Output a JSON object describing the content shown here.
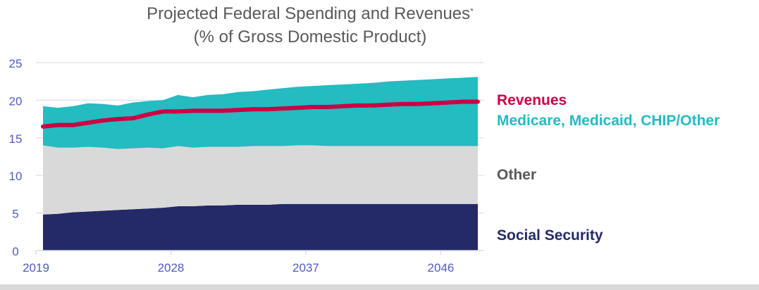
{
  "chart_data": {
    "type": "area",
    "title": "Projected Federal Spending and Revenues",
    "title_marker": "*",
    "subtitle": "(% of Gross Domestic Product)",
    "xlabel": "",
    "ylabel": "",
    "ylim": [
      0,
      25
    ],
    "yticks": [
      0,
      5,
      10,
      15,
      20,
      25
    ],
    "xticks": [
      "2019",
      "2028",
      "2037",
      "2046"
    ],
    "grid": true,
    "x": [
      2019,
      2020,
      2021,
      2022,
      2023,
      2024,
      2025,
      2026,
      2027,
      2028,
      2029,
      2030,
      2031,
      2032,
      2033,
      2034,
      2035,
      2036,
      2037,
      2038,
      2039,
      2040,
      2041,
      2042,
      2043,
      2044,
      2045,
      2046,
      2047,
      2048
    ],
    "stacked_series": [
      {
        "name": "Social Security",
        "color": "#242a66",
        "values": [
          4.8,
          4.9,
          5.1,
          5.2,
          5.3,
          5.4,
          5.5,
          5.6,
          5.7,
          5.9,
          5.9,
          6.0,
          6.0,
          6.1,
          6.1,
          6.1,
          6.2,
          6.2,
          6.2,
          6.2,
          6.2,
          6.2,
          6.2,
          6.2,
          6.2,
          6.2,
          6.2,
          6.2,
          6.2,
          6.2
        ]
      },
      {
        "name": "Other",
        "color": "#d9d9d9",
        "values": [
          9.2,
          8.8,
          8.6,
          8.6,
          8.4,
          8.1,
          8.1,
          8.1,
          7.9,
          8.0,
          7.8,
          7.8,
          7.8,
          7.7,
          7.8,
          7.8,
          7.7,
          7.8,
          7.8,
          7.7,
          7.7,
          7.7,
          7.7,
          7.7,
          7.7,
          7.7,
          7.7,
          7.7,
          7.7,
          7.7
        ]
      },
      {
        "name": "Medicare, Medicaid, CHIP/Other",
        "color": "#24bbc1",
        "values": [
          5.2,
          5.3,
          5.5,
          5.8,
          5.8,
          5.8,
          6.1,
          6.2,
          6.4,
          6.8,
          6.7,
          6.9,
          7.0,
          7.3,
          7.3,
          7.5,
          7.7,
          7.8,
          7.9,
          8.1,
          8.2,
          8.3,
          8.4,
          8.6,
          8.7,
          8.8,
          8.9,
          9.0,
          9.1,
          9.2
        ]
      }
    ],
    "line_series": [
      {
        "name": "Revenues",
        "color": "#cc0044",
        "values": [
          16.5,
          16.7,
          16.7,
          17.0,
          17.3,
          17.5,
          17.6,
          18.1,
          18.5,
          18.5,
          18.6,
          18.6,
          18.6,
          18.7,
          18.8,
          18.8,
          18.9,
          19.0,
          19.1,
          19.1,
          19.2,
          19.3,
          19.3,
          19.4,
          19.5,
          19.5,
          19.6,
          19.7,
          19.8,
          19.8
        ]
      }
    ],
    "legend": [
      {
        "label": "Revenues",
        "color": "#cc0044",
        "anchor_value": 19.8
      },
      {
        "label": "Medicare, Medicaid, CHIP/Other",
        "color": "#24bbc1",
        "anchor_value": 17.0
      },
      {
        "label": "Other",
        "color": "#595959",
        "anchor_value": 9.8
      },
      {
        "label": "Social Security",
        "color": "#242a66",
        "anchor_value": 1.8
      }
    ],
    "legend_placement": "right",
    "axis_color": "#4f5bc0",
    "grid_color": "#d9dcf0"
  }
}
